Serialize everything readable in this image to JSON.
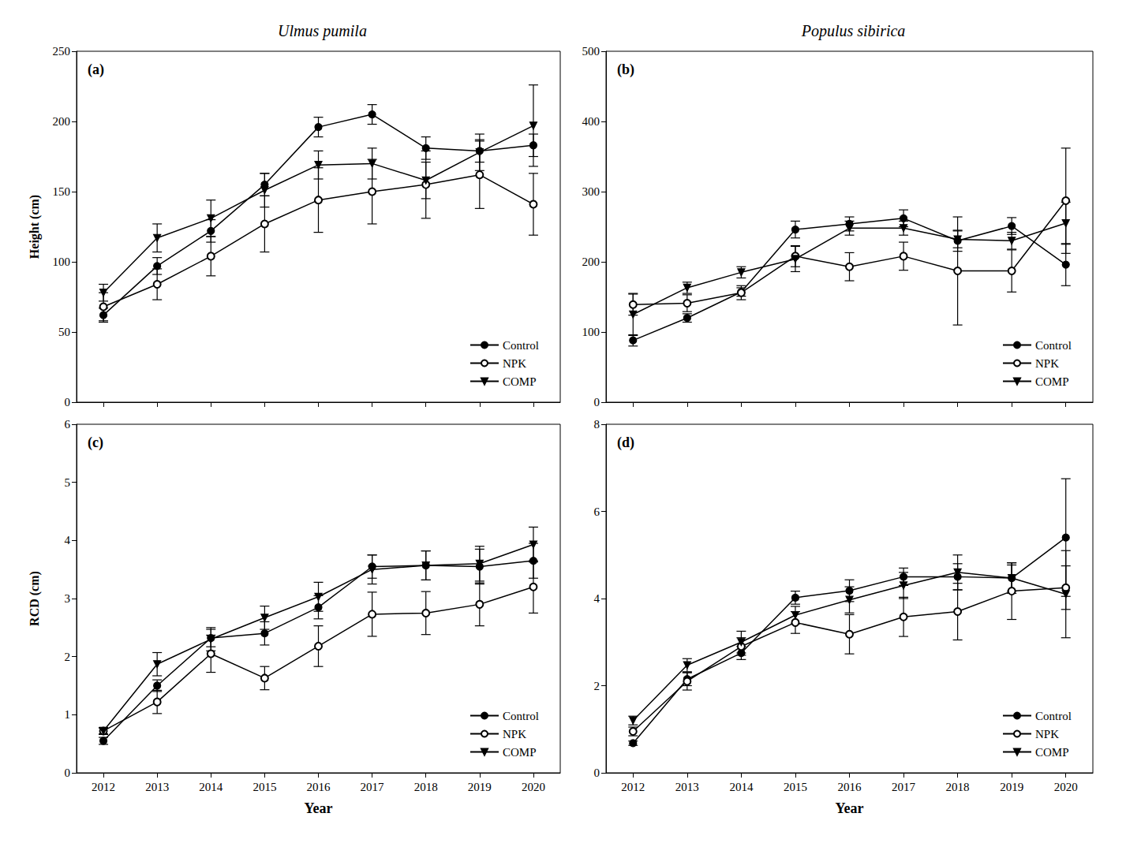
{
  "chart_data": [
    {
      "type": "line",
      "title": "Ulmus pumila",
      "annotation": "(a)",
      "ylabel": "Height (cm)",
      "categories": [
        "2012",
        "2013",
        "2014",
        "2015",
        "2016",
        "2017",
        "2018",
        "2019",
        "2020"
      ],
      "ylim": [
        0,
        250
      ],
      "yticks": [
        0,
        50,
        100,
        150,
        200,
        250
      ],
      "grid": false,
      "legend": "lower right",
      "tick_labels": "y",
      "series": [
        {
          "name": "Control",
          "color": "#000000",
          "marker": "circle",
          "line_style": "solid",
          "values": [
            62,
            97,
            122,
            155,
            196,
            205,
            181,
            179,
            183
          ],
          "errors": [
            5,
            6,
            8,
            8,
            7,
            7,
            8,
            8,
            8
          ]
        },
        {
          "name": "NPK",
          "color": "#000000",
          "marker": "open_circle",
          "line_style": "solid",
          "values": [
            68,
            84,
            104,
            127,
            144,
            150,
            155,
            162,
            141
          ],
          "errors": [
            10,
            11,
            14,
            20,
            23,
            23,
            24,
            24,
            22
          ]
        },
        {
          "name": "COMP",
          "color": "#000000",
          "marker": "triangle_down",
          "line_style": "solid",
          "values": [
            78,
            117,
            131,
            151,
            169,
            170,
            158,
            178,
            197
          ],
          "errors": [
            6,
            10,
            13,
            12,
            10,
            11,
            13,
            13,
            29
          ]
        }
      ]
    },
    {
      "type": "line",
      "title": "Populus sibirica",
      "annotation": "(b)",
      "categories": [
        "2012",
        "2013",
        "2014",
        "2015",
        "2016",
        "2017",
        "2018",
        "2019",
        "2020"
      ],
      "ylim": [
        0,
        500
      ],
      "yticks": [
        0,
        100,
        200,
        300,
        400,
        500
      ],
      "grid": false,
      "legend": "lower right",
      "tick_labels": "y",
      "series": [
        {
          "name": "Control",
          "color": "#000000",
          "marker": "circle",
          "line_style": "solid",
          "values": [
            88,
            120,
            157,
            246,
            254,
            262,
            230,
            251,
            196
          ],
          "errors": [
            8,
            6,
            6,
            12,
            10,
            12,
            15,
            12,
            30
          ]
        },
        {
          "name": "NPK",
          "color": "#000000",
          "marker": "open_circle",
          "line_style": "solid",
          "values": [
            139,
            141,
            156,
            208,
            193,
            208,
            187,
            187,
            287
          ],
          "errors": [
            15,
            12,
            10,
            15,
            20,
            20,
            77,
            30,
            75
          ]
        },
        {
          "name": "COMP",
          "color": "#000000",
          "marker": "triangle_down",
          "line_style": "solid",
          "values": [
            125,
            163,
            185,
            204,
            248,
            248,
            232,
            230,
            255
          ],
          "errors": [
            30,
            8,
            8,
            18,
            10,
            10,
            12,
            12,
            30
          ]
        }
      ]
    },
    {
      "type": "line",
      "annotation": "(c)",
      "ylabel": "RCD (cm)",
      "xlabel": "Year",
      "categories": [
        "2012",
        "2013",
        "2014",
        "2015",
        "2016",
        "2017",
        "2018",
        "2019",
        "2020"
      ],
      "ylim": [
        0,
        6
      ],
      "yticks": [
        0,
        1,
        2,
        3,
        4,
        5,
        6
      ],
      "grid": false,
      "legend": "lower right",
      "series": [
        {
          "name": "Control",
          "color": "#000000",
          "marker": "circle",
          "line_style": "solid",
          "values": [
            0.55,
            1.5,
            2.32,
            2.4,
            2.85,
            3.55,
            3.57,
            3.55,
            3.65
          ],
          "errors": [
            0.06,
            0.1,
            0.15,
            0.2,
            0.2,
            0.2,
            0.25,
            0.3,
            0.3
          ]
        },
        {
          "name": "NPK",
          "color": "#000000",
          "marker": "open_circle",
          "line_style": "solid",
          "values": [
            0.72,
            1.22,
            2.05,
            1.63,
            2.18,
            2.73,
            2.75,
            2.9,
            3.2
          ],
          "errors": [
            0.05,
            0.2,
            0.32,
            0.2,
            0.35,
            0.38,
            0.37,
            0.37,
            0.45
          ]
        },
        {
          "name": "COMP",
          "color": "#000000",
          "marker": "triangle_down",
          "line_style": "solid",
          "values": [
            0.72,
            1.87,
            2.3,
            2.67,
            3.03,
            3.5,
            3.57,
            3.6,
            3.93
          ],
          "errors": [
            0.06,
            0.2,
            0.2,
            0.2,
            0.25,
            0.25,
            0.25,
            0.3,
            0.3
          ]
        }
      ]
    },
    {
      "type": "line",
      "annotation": "(d)",
      "xlabel": "Year",
      "categories": [
        "2012",
        "2013",
        "2014",
        "2015",
        "2016",
        "2017",
        "2018",
        "2019",
        "2020"
      ],
      "ylim": [
        0,
        8
      ],
      "yticks": [
        0,
        2,
        4,
        6,
        8
      ],
      "grid": false,
      "legend": "lower right",
      "series": [
        {
          "name": "Control",
          "color": "#000000",
          "marker": "circle",
          "line_style": "solid",
          "values": [
            0.68,
            2.15,
            2.75,
            4.02,
            4.18,
            4.5,
            4.5,
            4.47,
            5.4
          ],
          "errors": [
            0.05,
            0.15,
            0.15,
            0.15,
            0.25,
            0.2,
            0.3,
            0.3,
            1.35
          ]
        },
        {
          "name": "NPK",
          "color": "#000000",
          "marker": "open_circle",
          "line_style": "solid",
          "values": [
            0.95,
            2.1,
            2.9,
            3.45,
            3.18,
            3.58,
            3.7,
            4.17,
            4.25
          ],
          "errors": [
            0.1,
            0.2,
            0.2,
            0.25,
            0.45,
            0.45,
            0.65,
            0.65,
            0.5
          ]
        },
        {
          "name": "COMP",
          "color": "#000000",
          "marker": "triangle_down",
          "line_style": "solid",
          "values": [
            1.2,
            2.47,
            3.0,
            3.62,
            3.97,
            4.3,
            4.6,
            4.47,
            4.1
          ],
          "errors": [
            0.1,
            0.15,
            0.25,
            0.2,
            0.3,
            0.3,
            0.4,
            0.35,
            1.0
          ]
        }
      ]
    }
  ]
}
